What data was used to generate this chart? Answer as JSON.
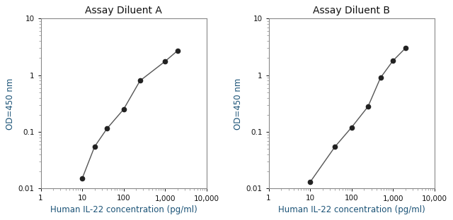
{
  "title_A": "Assay Diluent A",
  "title_B": "Assay Diluent B",
  "xlabel": "Human IL-22 concentration (pg/ml)",
  "ylabel": "OD=450 nm",
  "xA": [
    10,
    20,
    40,
    100,
    250,
    1000,
    2000
  ],
  "yA": [
    0.015,
    0.055,
    0.115,
    0.25,
    0.8,
    1.75,
    2.7
  ],
  "xB": [
    10,
    40,
    100,
    250,
    500,
    1000,
    2000
  ],
  "yB": [
    0.013,
    0.055,
    0.12,
    0.28,
    0.9,
    1.8,
    3.0
  ],
  "xlim": [
    1,
    10000
  ],
  "ylim": [
    0.01,
    10
  ],
  "line_color": "#555555",
  "marker_color": "#222222",
  "label_color": "#1a5276",
  "title_color": "#111111",
  "tick_color": "#111111",
  "spine_color": "#888888",
  "bg_color": "#ffffff",
  "title_fontsize": 10,
  "label_fontsize": 8.5,
  "tick_fontsize": 7.5
}
